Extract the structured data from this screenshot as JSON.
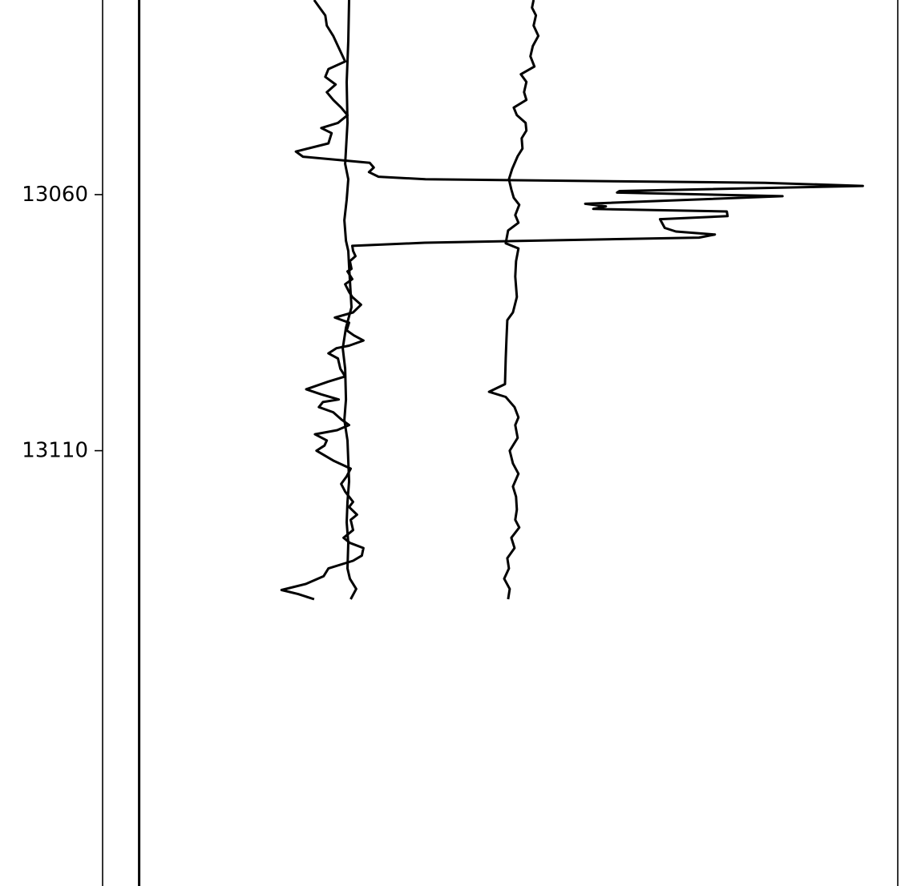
{
  "chart_data": {
    "type": "line",
    "orientation": "vertical-depth",
    "title": "",
    "xlabel": "",
    "ylabel": "",
    "y_axis": {
      "inverted": true,
      "ylim": [
        13022.0,
        13195.0
      ],
      "ticks": [
        13060,
        13110
      ],
      "tick_labels": [
        "13060",
        "13110"
      ]
    },
    "x_axis": {
      "xlim": [
        0,
        100
      ],
      "visible_ticks": false
    },
    "grid": false,
    "legend": "none",
    "line_color": "#000000",
    "series": [
      {
        "points": [
          [
            4.6,
            13022.0
          ],
          [
            4.6,
            13060.0
          ],
          [
            4.6,
            13110.0
          ],
          [
            4.6,
            13195.0
          ]
        ]
      },
      {
        "points": [
          [
            26.6,
            13022.0
          ],
          [
            27.3,
            13023.5
          ],
          [
            28.0,
            13025.0
          ],
          [
            28.2,
            13027.0
          ],
          [
            29.0,
            13029.0
          ],
          [
            29.6,
            13031.0
          ],
          [
            30.5,
            13034.0
          ],
          [
            28.4,
            13035.5
          ],
          [
            28.0,
            13037.0
          ],
          [
            29.3,
            13038.5
          ],
          [
            28.2,
            13040.0
          ],
          [
            29.0,
            13041.5
          ],
          [
            30.0,
            13043.0
          ],
          [
            30.8,
            13044.5
          ],
          [
            29.6,
            13046.0
          ],
          [
            27.5,
            13047.0
          ],
          [
            28.8,
            13048.0
          ],
          [
            28.4,
            13050.0
          ],
          [
            24.3,
            13051.6
          ],
          [
            25.2,
            13052.6
          ],
          [
            33.6,
            13053.8
          ],
          [
            34.1,
            13054.7
          ],
          [
            33.5,
            13055.6
          ],
          [
            34.7,
            13056.5
          ],
          [
            40.6,
            13057.0
          ],
          [
            83.3,
            13057.7
          ],
          [
            95.6,
            13058.3
          ],
          [
            65.0,
            13059.3
          ],
          [
            64.7,
            13059.6
          ],
          [
            85.5,
            13060.3
          ],
          [
            60.7,
            13061.8
          ],
          [
            63.3,
            13062.3
          ],
          [
            61.7,
            13062.8
          ],
          [
            78.5,
            13063.3
          ],
          [
            78.6,
            13064.2
          ],
          [
            70.1,
            13064.8
          ],
          [
            70.7,
            13066.5
          ],
          [
            72.1,
            13067.2
          ],
          [
            77.0,
            13067.8
          ],
          [
            75.0,
            13068.4
          ],
          [
            40.5,
            13069.4
          ],
          [
            31.4,
            13070.0
          ],
          [
            31.5,
            13071.0
          ],
          [
            31.8,
            13072.0
          ],
          [
            31.1,
            13073.0
          ],
          [
            31.3,
            13074.5
          ],
          [
            30.8,
            13075.0
          ],
          [
            31.4,
            13076.5
          ],
          [
            30.5,
            13077.5
          ],
          [
            31.0,
            13079.0
          ],
          [
            31.4,
            13080.0
          ],
          [
            32.5,
            13081.5
          ],
          [
            31.5,
            13083.0
          ],
          [
            29.2,
            13084.0
          ],
          [
            31.0,
            13085.0
          ],
          [
            30.7,
            13086.5
          ],
          [
            31.6,
            13087.5
          ],
          [
            32.8,
            13088.5
          ],
          [
            31.0,
            13089.5
          ],
          [
            29.4,
            13090.0
          ],
          [
            28.4,
            13091.0
          ],
          [
            29.6,
            13092.0
          ],
          [
            29.9,
            13094.0
          ],
          [
            30.5,
            13095.5
          ],
          [
            28.4,
            13096.5
          ],
          [
            25.6,
            13098.0
          ],
          [
            27.5,
            13099.0
          ],
          [
            29.7,
            13100.0
          ],
          [
            27.7,
            13100.5
          ],
          [
            27.2,
            13101.5
          ],
          [
            29.0,
            13102.5
          ],
          [
            30.1,
            13104.0
          ],
          [
            31.0,
            13105.0
          ],
          [
            29.5,
            13106.0
          ],
          [
            26.7,
            13106.8
          ],
          [
            28.2,
            13108.0
          ],
          [
            27.9,
            13109.0
          ],
          [
            26.9,
            13110.0
          ],
          [
            29.1,
            13112.0
          ],
          [
            31.2,
            13113.5
          ],
          [
            30.7,
            13115.0
          ],
          [
            30.0,
            13116.5
          ],
          [
            30.5,
            13118.0
          ],
          [
            31.5,
            13120.0
          ],
          [
            31.0,
            13121.0
          ],
          [
            32.0,
            13122.5
          ],
          [
            31.2,
            13123.5
          ],
          [
            31.5,
            13125.5
          ],
          [
            30.3,
            13127.0
          ],
          [
            31.1,
            13128.0
          ],
          [
            32.8,
            13129.0
          ],
          [
            32.6,
            13130.5
          ],
          [
            31.5,
            13131.5
          ],
          [
            28.4,
            13133.0
          ],
          [
            27.8,
            13134.5
          ],
          [
            25.6,
            13136.0
          ],
          [
            22.5,
            13137.2
          ],
          [
            24.6,
            13138.0
          ],
          [
            26.6,
            13139.0
          ]
        ]
      },
      {
        "points": [
          [
            31.0,
            13022.0
          ],
          [
            30.9,
            13030.0
          ],
          [
            30.7,
            13038.0
          ],
          [
            30.8,
            13046.0
          ],
          [
            30.5,
            13054.0
          ],
          [
            30.9,
            13057.0
          ],
          [
            30.7,
            13061.0
          ],
          [
            30.4,
            13065.0
          ],
          [
            30.6,
            13069.0
          ],
          [
            30.9,
            13071.0
          ],
          [
            31.0,
            13074.0
          ],
          [
            31.3,
            13082.0
          ],
          [
            30.6,
            13086.0
          ],
          [
            30.2,
            13090.0
          ],
          [
            30.5,
            13094.0
          ],
          [
            30.6,
            13100.0
          ],
          [
            30.4,
            13104.0
          ],
          [
            30.8,
            13108.0
          ],
          [
            30.9,
            13112.0
          ],
          [
            31.0,
            13116.0
          ],
          [
            30.8,
            13120.0
          ],
          [
            30.7,
            13124.0
          ],
          [
            30.9,
            13128.0
          ],
          [
            30.8,
            13133.0
          ],
          [
            31.1,
            13135.0
          ],
          [
            31.9,
            13137.0
          ],
          [
            31.2,
            13139.0
          ]
        ]
      },
      {
        "points": [
          [
            54.2,
            13022.0
          ],
          [
            54.0,
            13023.5
          ],
          [
            54.5,
            13025.0
          ],
          [
            54.2,
            13027.0
          ],
          [
            54.8,
            13029.0
          ],
          [
            54.1,
            13031.0
          ],
          [
            53.8,
            13033.0
          ],
          [
            54.3,
            13035.0
          ],
          [
            52.6,
            13036.5
          ],
          [
            53.3,
            13038.0
          ],
          [
            53.0,
            13040.0
          ],
          [
            53.3,
            13041.5
          ],
          [
            51.7,
            13043.0
          ],
          [
            52.1,
            13044.5
          ],
          [
            53.2,
            13046.0
          ],
          [
            53.3,
            13047.5
          ],
          [
            52.7,
            13049.0
          ],
          [
            52.8,
            13051.0
          ],
          [
            52.2,
            13052.5
          ],
          [
            51.5,
            13055.0
          ],
          [
            51.1,
            13057.0
          ],
          [
            51.4,
            13059.0
          ],
          [
            51.7,
            13060.6
          ],
          [
            52.4,
            13062.0
          ],
          [
            51.9,
            13064.0
          ],
          [
            52.3,
            13065.5
          ],
          [
            51.0,
            13067.0
          ],
          [
            50.7,
            13069.5
          ],
          [
            52.3,
            13070.5
          ],
          [
            52.0,
            13073.0
          ],
          [
            51.9,
            13076.0
          ],
          [
            52.1,
            13080.0
          ],
          [
            51.6,
            13083.0
          ],
          [
            50.9,
            13084.5
          ],
          [
            50.8,
            13088.0
          ],
          [
            50.7,
            13092.0
          ],
          [
            50.6,
            13097.0
          ],
          [
            48.6,
            13098.5
          ],
          [
            50.7,
            13099.5
          ],
          [
            51.8,
            13101.5
          ],
          [
            52.3,
            13103.5
          ],
          [
            51.9,
            13105.0
          ],
          [
            52.2,
            13107.5
          ],
          [
            51.2,
            13110.0
          ],
          [
            51.6,
            13112.5
          ],
          [
            52.3,
            13114.5
          ],
          [
            51.6,
            13117.0
          ],
          [
            52.0,
            13119.0
          ],
          [
            52.1,
            13121.5
          ],
          [
            51.9,
            13123.5
          ],
          [
            52.4,
            13125.0
          ],
          [
            51.4,
            13127.0
          ],
          [
            51.8,
            13129.0
          ],
          [
            50.9,
            13131.0
          ],
          [
            51.1,
            13133.0
          ],
          [
            50.5,
            13135.0
          ],
          [
            51.2,
            13137.0
          ],
          [
            51.0,
            13139.0
          ]
        ]
      }
    ]
  }
}
